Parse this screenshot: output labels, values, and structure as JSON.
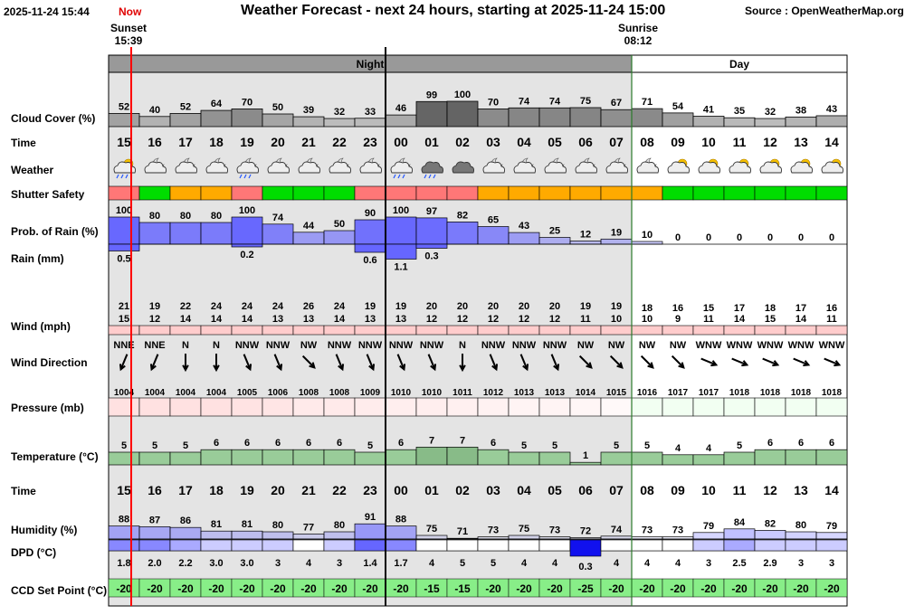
{
  "header": {
    "datetime": "2025-11-24 15:44",
    "now_label": "Now",
    "title": "Weather Forecast - next 24 hours, starting at 2025-11-24 15:00",
    "source": "Source : OpenWeatherMap.org",
    "sunset_label": "Sunset",
    "sunset_time": "15:39",
    "sunrise_label": "Sunrise",
    "sunrise_time": "08:12"
  },
  "periods": {
    "night": "Night",
    "day": "Day"
  },
  "row_labels": {
    "cloud_cover": "Cloud Cover (%)",
    "time": "Time",
    "weather": "Weather",
    "shutter": "Shutter Safety",
    "rain_prob": "Prob. of Rain (%)",
    "rain_mm": "Rain (mm)",
    "wind": "Wind (mph)",
    "wind_dir": "Wind Direction",
    "pressure": "Pressure (mb)",
    "temperature": "Temperature (°C)",
    "time2": "Time",
    "humidity": "Humidity (%)",
    "dpd": "DPD (°C)",
    "ccd": "CCD Set Point (°C)"
  },
  "hours": [
    "15",
    "16",
    "17",
    "18",
    "19",
    "20",
    "21",
    "22",
    "23",
    "00",
    "01",
    "02",
    "03",
    "04",
    "05",
    "06",
    "07",
    "08",
    "09",
    "10",
    "11",
    "12",
    "13",
    "14"
  ],
  "is_night": [
    true,
    true,
    true,
    true,
    true,
    true,
    true,
    true,
    true,
    true,
    true,
    true,
    true,
    true,
    true,
    true,
    true,
    false,
    false,
    false,
    false,
    false,
    false,
    false
  ],
  "cloud_cover": [
    52,
    40,
    52,
    64,
    70,
    50,
    39,
    32,
    33,
    46,
    99,
    100,
    70,
    74,
    74,
    75,
    67,
    71,
    54,
    41,
    35,
    32,
    38,
    43
  ],
  "weather_icons": [
    "cloud-rain-sun",
    "cloud-moon",
    "cloud-moon",
    "cloud-moon",
    "cloud-rain-moon",
    "cloud-moon",
    "cloud-moon",
    "cloud-moon",
    "cloud-moon",
    "cloud-rain-moon",
    "cloud-rain",
    "cloud",
    "cloud-moon",
    "cloud-moon",
    "cloud-moon",
    "cloud-moon",
    "cloud-moon",
    "cloud-moon",
    "cloud-sun",
    "cloud-sun",
    "cloud-sun",
    "cloud-sun",
    "cloud-sun",
    "cloud-sun"
  ],
  "shutter_safety": [
    "unsafe",
    "safe",
    "caution",
    "caution",
    "unsafe",
    "safe",
    "safe",
    "safe",
    "unsafe",
    "unsafe",
    "unsafe",
    "unsafe",
    "caution",
    "caution",
    "caution",
    "caution",
    "caution",
    "caution",
    "safe",
    "safe",
    "safe",
    "safe",
    "safe",
    "safe"
  ],
  "shutter_colors": {
    "safe": "#00dd00",
    "caution": "#ffaa00",
    "unsafe": "#ff7777"
  },
  "rain_prob": [
    100,
    80,
    80,
    80,
    100,
    74,
    44,
    50,
    90,
    100,
    97,
    82,
    65,
    43,
    25,
    12,
    19,
    10,
    0,
    0,
    0,
    0,
    0,
    0
  ],
  "rain_mm": [
    {
      "i": 0,
      "v": "0.5",
      "amt": 0.5
    },
    {
      "i": 4,
      "v": "0.2",
      "amt": 0.2
    },
    {
      "i": 8,
      "v": "0.6",
      "amt": 0.6
    },
    {
      "i": 9,
      "v": "1.1",
      "amt": 1.1
    },
    {
      "i": 10,
      "v": "0.3",
      "amt": 0.3
    }
  ],
  "wind_gust": [
    21,
    19,
    22,
    24,
    24,
    24,
    26,
    24,
    19,
    19,
    20,
    20,
    20,
    20,
    20,
    19,
    19,
    18,
    16,
    15,
    17,
    18,
    17,
    16
  ],
  "wind_speed": [
    15,
    12,
    14,
    14,
    14,
    13,
    13,
    14,
    13,
    13,
    12,
    12,
    12,
    12,
    12,
    11,
    10,
    10,
    9,
    11,
    14,
    15,
    14,
    11
  ],
  "wind_dir": [
    "NNE",
    "NNE",
    "N",
    "N",
    "NNW",
    "NNW",
    "NW",
    "NNW",
    "NNW",
    "NNW",
    "NNW",
    "N",
    "NNW",
    "NNW",
    "NNW",
    "NW",
    "NW",
    "NW",
    "NW",
    "WNW",
    "WNW",
    "WNW",
    "WNW",
    "WNW"
  ],
  "pressure": [
    1004,
    1004,
    1004,
    1004,
    1005,
    1006,
    1008,
    1008,
    1009,
    1010,
    1010,
    1011,
    1012,
    1013,
    1013,
    1014,
    1015,
    1016,
    1017,
    1017,
    1018,
    1018,
    1018,
    1018
  ],
  "temperature": [
    5,
    5,
    5,
    6,
    6,
    6,
    6,
    6,
    5,
    6,
    7,
    7,
    6,
    5,
    5,
    1,
    5,
    5,
    4,
    4,
    5,
    6,
    6,
    6
  ],
  "humidity": [
    88,
    87,
    86,
    81,
    81,
    80,
    77,
    80,
    91,
    88,
    75,
    71,
    73,
    75,
    73,
    72,
    74,
    73,
    73,
    79,
    84,
    82,
    80,
    79
  ],
  "dpd": [
    "1.8",
    "2.0",
    "2.2",
    "3.0",
    "3.0",
    "3",
    "4",
    "3",
    "1.4",
    "1.7",
    "4",
    "5",
    "5",
    "4",
    "4",
    "0.3",
    "4",
    "4",
    "4",
    "3",
    "2.5",
    "2.9",
    "3",
    "3"
  ],
  "ccd_set_point": [
    -20,
    -20,
    -20,
    -20,
    -20,
    -20,
    -20,
    -20,
    -20,
    -20,
    -15,
    -15,
    -20,
    -20,
    -20,
    -25,
    -20,
    -20,
    -20,
    -20,
    -20,
    -20,
    -20,
    -20
  ],
  "colors": {
    "night_shade": "#e4e4e4",
    "night_header": "#999999",
    "now_line": "#ff0000",
    "day_boundary": "#2a7a2a",
    "rain_prob": "#7777ff",
    "wind_bar": "#ffcccc",
    "temp_bar": "#99cc99",
    "ccd_bar": "#88ee88"
  }
}
